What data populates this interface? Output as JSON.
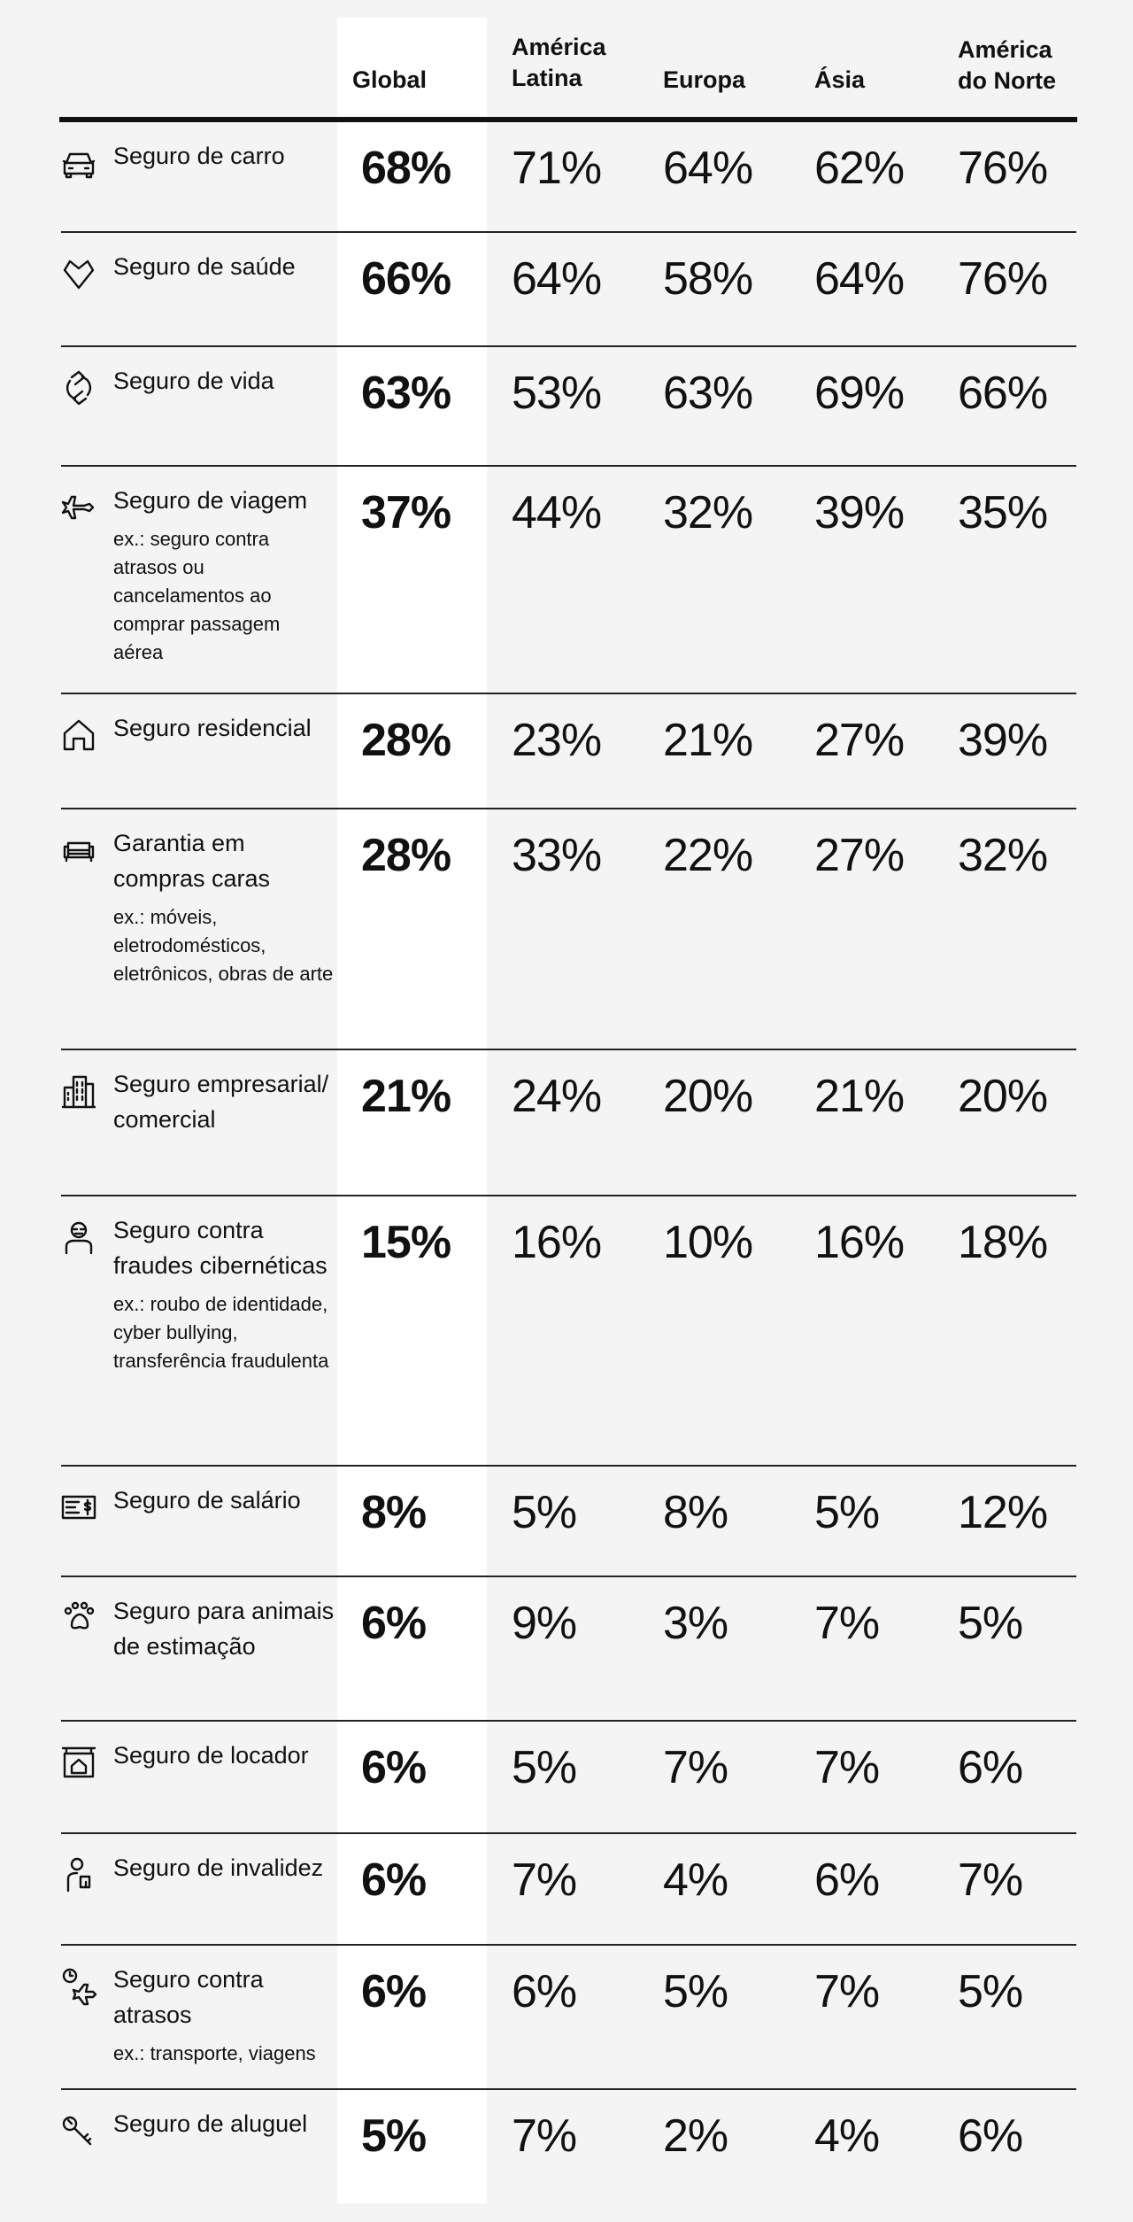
{
  "header": {
    "global": "Global",
    "latin_america": "América\nLatina",
    "europe": "Europa",
    "asia": "Ásia",
    "north_america": "América\ndo Norte"
  },
  "rows": [
    {
      "icon": "car-icon",
      "label": "Seguro de carro",
      "note": "",
      "global": "68%",
      "latin_america": "71%",
      "europe": "64%",
      "asia": "62%",
      "north_america": "76%"
    },
    {
      "icon": "heart-icon",
      "label": "Seguro de saúde",
      "note": "",
      "global": "66%",
      "latin_america": "64%",
      "europe": "58%",
      "asia": "64%",
      "north_america": "76%"
    },
    {
      "icon": "hands-cycle-icon",
      "label": "Seguro de vida",
      "note": "",
      "global": "63%",
      "latin_america": "53%",
      "europe": "63%",
      "asia": "69%",
      "north_america": "66%"
    },
    {
      "icon": "airplane-icon",
      "label": "Seguro de viagem",
      "note": "ex.: seguro contra atrasos ou cancelamentos ao comprar passagem aérea",
      "global": "37%",
      "latin_america": "44%",
      "europe": "32%",
      "asia": "39%",
      "north_america": "35%"
    },
    {
      "icon": "house-icon",
      "label": "Seguro residencial",
      "note": "",
      "global": "28%",
      "latin_america": "23%",
      "europe": "21%",
      "asia": "27%",
      "north_america": "39%"
    },
    {
      "icon": "sofa-icon",
      "label": "Garantia em compras caras",
      "note": "ex.: móveis, eletrodomésticos, eletrônicos, obras de arte",
      "global": "28%",
      "latin_america": "33%",
      "europe": "22%",
      "asia": "27%",
      "north_america": "32%"
    },
    {
      "icon": "building-icon",
      "label": "Seguro empresarial/ comercial",
      "note": "",
      "global": "21%",
      "latin_america": "24%",
      "europe": "20%",
      "asia": "21%",
      "north_america": "20%"
    },
    {
      "icon": "hacker-icon",
      "label": "Seguro contra fraudes cibernéticas",
      "note": "ex.: roubo de identidade, cyber bullying, transferência fraudulenta",
      "global": "15%",
      "latin_america": "16%",
      "europe": "10%",
      "asia": "16%",
      "north_america": "18%"
    },
    {
      "icon": "paycheck-icon",
      "label": "Seguro de salário",
      "note": "",
      "global": "8%",
      "latin_america": "5%",
      "europe": "8%",
      "asia": "5%",
      "north_america": "12%"
    },
    {
      "icon": "paw-icon",
      "label": "Seguro para animais de estimação",
      "note": "",
      "global": "6%",
      "latin_america": "9%",
      "europe": "3%",
      "asia": "7%",
      "north_america": "5%"
    },
    {
      "icon": "rental-sign-icon",
      "label": "Seguro de locador",
      "note": "",
      "global": "6%",
      "latin_america": "5%",
      "europe": "7%",
      "asia": "7%",
      "north_america": "6%"
    },
    {
      "icon": "person-cast-icon",
      "label": "Seguro de invalidez",
      "note": "",
      "global": "6%",
      "latin_america": "7%",
      "europe": "4%",
      "asia": "6%",
      "north_america": "7%"
    },
    {
      "icon": "clock-plane-icon",
      "label": "Seguro contra atrasos",
      "note": "ex.: transporte, viagens",
      "global": "6%",
      "latin_america": "6%",
      "europe": "5%",
      "asia": "7%",
      "north_america": "5%"
    },
    {
      "icon": "keys-icon",
      "label": "Seguro de aluguel",
      "note": "",
      "global": "5%",
      "latin_america": "7%",
      "europe": "2%",
      "asia": "4%",
      "north_america": "6%"
    }
  ]
}
